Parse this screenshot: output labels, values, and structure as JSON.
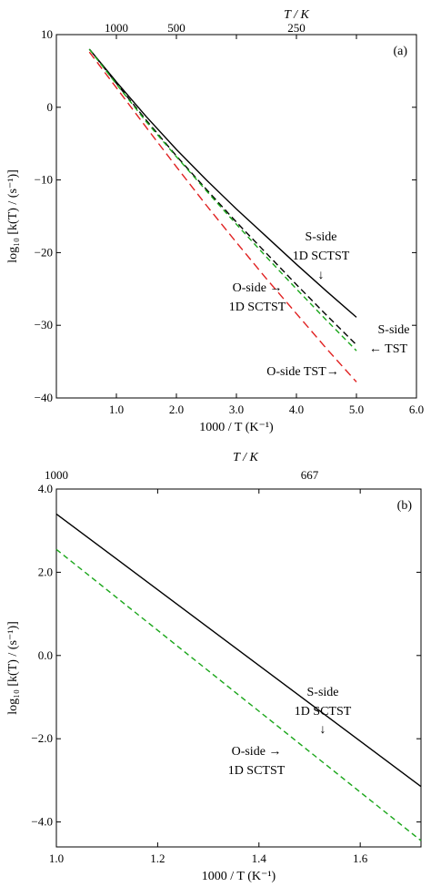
{
  "chart_data": [
    {
      "type": "line",
      "panel_label": "(a)",
      "xlabel": "1000 / T (K⁻¹)",
      "ylabel": "log₁₀ [k(T) / (s⁻¹)]",
      "top_axis_label": "T / K",
      "xlim": [
        0,
        6.0
      ],
      "ylim": [
        -40,
        10
      ],
      "x_ticks": [
        "1.0",
        "2.0",
        "3.0",
        "4.0",
        "5.0",
        "6.0"
      ],
      "x_tick_values": [
        1,
        2,
        3,
        4,
        5,
        6
      ],
      "y_ticks": [
        "10",
        "0",
        "−10",
        "−20",
        "−30",
        "−40"
      ],
      "y_tick_values": [
        10,
        0,
        -10,
        -20,
        -30,
        -40
      ],
      "top_ticks": [
        "1000",
        "500",
        "250"
      ],
      "top_tick_values": [
        1,
        2,
        4
      ],
      "series": [
        {
          "key": "s_sctst",
          "color": "#000000",
          "dash": "",
          "x": [
            0.55,
            1.0,
            1.5,
            2.0,
            2.5,
            3.0,
            3.5,
            4.0,
            4.5,
            5.0
          ],
          "y": [
            8.0,
            3.5,
            -1.3,
            -5.8,
            -10.0,
            -14.0,
            -17.8,
            -21.6,
            -25.3,
            -28.9
          ]
        },
        {
          "key": "s_tst",
          "color": "#000000",
          "dash": "7,4",
          "x": [
            0.55,
            1.0,
            1.5,
            2.0,
            2.5,
            3.0,
            3.5,
            4.0,
            4.5,
            5.0
          ],
          "y": [
            8.0,
            3.3,
            -1.8,
            -6.7,
            -11.3,
            -15.8,
            -20.1,
            -24.4,
            -28.6,
            -32.7
          ]
        },
        {
          "key": "o_sctst",
          "color": "#1aa61a",
          "dash": "6,4",
          "x": [
            0.55,
            1.0,
            1.5,
            2.0,
            2.5,
            3.0,
            3.5,
            4.0,
            4.5,
            5.0
          ],
          "y": [
            8.0,
            3.2,
            -2.0,
            -6.8,
            -11.5,
            -16.1,
            -20.6,
            -25.0,
            -29.3,
            -33.5
          ]
        },
        {
          "key": "o_tst",
          "color": "#e02020",
          "dash": "9,5",
          "x": [
            0.55,
            1.0,
            1.5,
            2.0,
            2.5,
            3.0,
            3.5,
            4.0,
            4.5,
            5.0
          ],
          "y": [
            7.6,
            2.7,
            -2.8,
            -8.2,
            -13.5,
            -18.6,
            -23.6,
            -28.4,
            -33.2,
            -37.8
          ]
        }
      ],
      "annotations": [
        {
          "key": "s_sctst",
          "lines": [
            "S-side",
            "1D SCTST"
          ],
          "arrow": "↓"
        },
        {
          "key": "o_sctst",
          "lines": [
            "O-side →",
            "1D SCTST"
          ]
        },
        {
          "key": "s_tst",
          "lines": [
            "S-side",
            "← TST"
          ]
        },
        {
          "key": "o_tst",
          "lines": [
            "O-side TST→"
          ]
        }
      ]
    },
    {
      "type": "line",
      "panel_label": "(b)",
      "xlabel": "1000 / T (K⁻¹)",
      "ylabel": "log₁₀ [k(T) / (s⁻¹)]",
      "top_axis_label": "T / K",
      "xlim": [
        1.0,
        1.72
      ],
      "ylim": [
        -4.6,
        4.0
      ],
      "x_ticks": [
        "1.0",
        "1.2",
        "1.4",
        "1.6"
      ],
      "x_tick_values": [
        1.0,
        1.2,
        1.4,
        1.6
      ],
      "y_ticks": [
        "4.0",
        "2.0",
        "0.0",
        "−2.0",
        "−4.0"
      ],
      "y_tick_values": [
        4,
        2,
        0,
        -2,
        -4
      ],
      "top_ticks": [
        "1000",
        "667"
      ],
      "top_tick_values": [
        1.0,
        1.5
      ],
      "series": [
        {
          "key": "s_sctst",
          "color": "#000000",
          "dash": "",
          "x": [
            1.0,
            1.72
          ],
          "y": [
            3.4,
            -3.15
          ]
        },
        {
          "key": "o_sctst",
          "color": "#1aa61a",
          "dash": "6,4",
          "x": [
            1.0,
            1.72
          ],
          "y": [
            2.55,
            -4.45
          ]
        }
      ],
      "annotations": [
        {
          "key": "s_sctst",
          "lines": [
            "S-side",
            "1D SCTST"
          ],
          "arrow": "↓"
        },
        {
          "key": "o_sctst",
          "lines": [
            "O-side →",
            "1D SCTST"
          ]
        }
      ]
    }
  ]
}
